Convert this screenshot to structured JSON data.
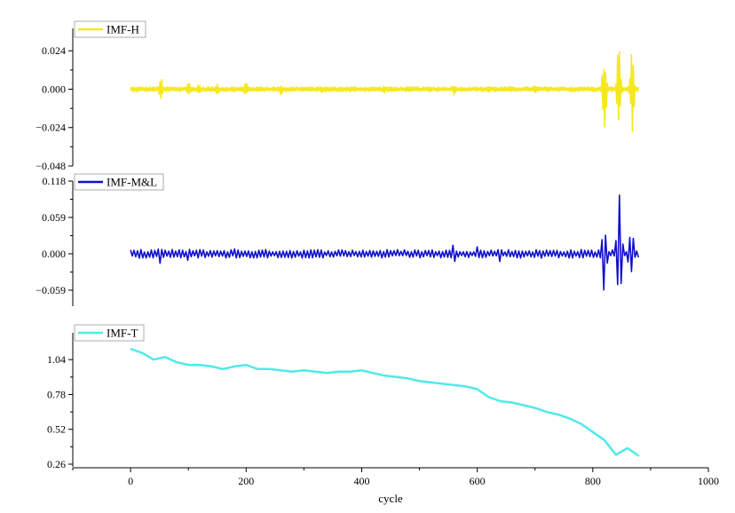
{
  "chart_data": {
    "type": "line",
    "xlabel": "cycle",
    "xlim": [
      -100,
      1000
    ],
    "xticks": [
      0,
      200,
      400,
      600,
      800,
      1000
    ],
    "panels": [
      {
        "series_name": "IMF-H",
        "color": "#F5E81E",
        "ylim": [
          -0.048,
          0.038
        ],
        "yticks": [
          "0.024",
          "0.000",
          "−0.024",
          "−0.048"
        ],
        "ytick_values": [
          0.024,
          0.0,
          -0.024,
          -0.048
        ],
        "kind": "oscillation",
        "x_range": [
          0,
          880
        ],
        "base_amplitude": 0.0015,
        "bursts": [
          {
            "x": 52,
            "amp": 0.009
          },
          {
            "x": 100,
            "amp": 0.006
          },
          {
            "x": 118,
            "amp": 0.004
          },
          {
            "x": 150,
            "amp": 0.004
          },
          {
            "x": 200,
            "amp": 0.006
          },
          {
            "x": 260,
            "amp": 0.004
          },
          {
            "x": 330,
            "amp": 0.003
          },
          {
            "x": 440,
            "amp": 0.003
          },
          {
            "x": 560,
            "amp": 0.004
          },
          {
            "x": 620,
            "amp": 0.003
          },
          {
            "x": 700,
            "amp": 0.003
          },
          {
            "x": 820,
            "amp": 0.028
          },
          {
            "x": 845,
            "amp": 0.034
          },
          {
            "x": 868,
            "amp": 0.032
          }
        ]
      },
      {
        "series_name": "IMF-M&L",
        "color": "#1010CC",
        "ylim": [
          -0.085,
          0.118
        ],
        "yticks": [
          "0.118",
          "0.059",
          "0.000",
          "−0.059"
        ],
        "ytick_values": [
          0.118,
          0.059,
          0.0,
          -0.059
        ],
        "kind": "oscillation",
        "x_range": [
          0,
          880
        ],
        "base_amplitude": 0.007,
        "bursts": [
          {
            "x": 50,
            "amp": 0.018
          },
          {
            "x": 100,
            "amp": 0.012
          },
          {
            "x": 180,
            "amp": 0.01
          },
          {
            "x": 560,
            "amp": 0.02
          },
          {
            "x": 600,
            "amp": 0.015
          },
          {
            "x": 640,
            "amp": 0.015
          },
          {
            "x": 820,
            "amp": 0.07
          },
          {
            "x": 846,
            "amp": 0.1
          },
          {
            "x": 866,
            "amp": 0.07
          }
        ]
      },
      {
        "series_name": "IMF-T",
        "color": "#4FEAEA",
        "ylim": [
          0.24,
          1.24
        ],
        "yticks": [
          "1.04",
          "0.78",
          "0.52",
          "0.26"
        ],
        "ytick_values": [
          1.04,
          0.78,
          0.52,
          0.26
        ],
        "kind": "trend",
        "x": [
          0,
          20,
          40,
          60,
          80,
          100,
          120,
          140,
          160,
          180,
          200,
          220,
          240,
          260,
          280,
          300,
          320,
          340,
          360,
          380,
          400,
          420,
          440,
          460,
          480,
          500,
          520,
          540,
          560,
          580,
          600,
          620,
          640,
          660,
          680,
          700,
          720,
          740,
          760,
          780,
          800,
          820,
          840,
          860,
          880
        ],
        "y": [
          1.12,
          1.09,
          1.04,
          1.06,
          1.02,
          1.0,
          1.0,
          0.99,
          0.97,
          0.99,
          1.0,
          0.97,
          0.97,
          0.96,
          0.95,
          0.96,
          0.95,
          0.94,
          0.95,
          0.95,
          0.96,
          0.94,
          0.92,
          0.91,
          0.9,
          0.88,
          0.87,
          0.86,
          0.85,
          0.84,
          0.82,
          0.76,
          0.73,
          0.72,
          0.7,
          0.68,
          0.65,
          0.63,
          0.6,
          0.56,
          0.5,
          0.44,
          0.33,
          0.38,
          0.32
        ]
      }
    ]
  }
}
